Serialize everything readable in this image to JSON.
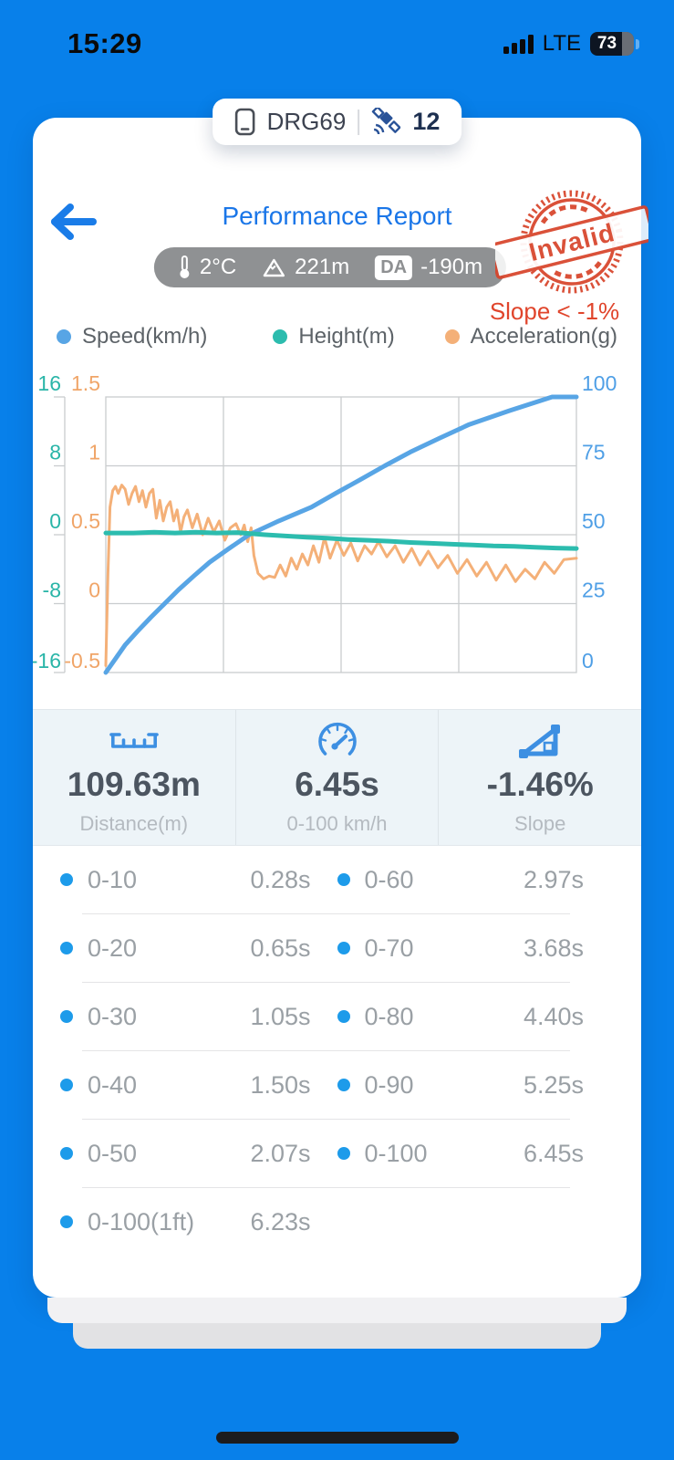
{
  "status_bar": {
    "time": "15:29",
    "network": "LTE",
    "battery_percent": "73"
  },
  "device_pill": {
    "name": "DRG69",
    "satellite_count": "12"
  },
  "header": {
    "title": "Performance Report",
    "stamp_text": "Invalid",
    "slope_caption": "Slope < -1%",
    "env": {
      "temperature": "2°C",
      "altitude": "221m",
      "da_label": "DA",
      "density_altitude": "-190m"
    }
  },
  "legend": [
    {
      "label": "Speed(km/h)",
      "color": "#58a5e5"
    },
    {
      "label": "Height(m)",
      "color": "#2cbcae"
    },
    {
      "label": "Acceleration(g)",
      "color": "#f4b078"
    }
  ],
  "chart_data": {
    "type": "line",
    "x_range": [
      0,
      6.8
    ],
    "x_axis_labels_visible": false,
    "grid": true,
    "axes": {
      "height_left": {
        "color": "#2ab5a8",
        "ticks": [
          16,
          8,
          0,
          -8,
          -16
        ],
        "range": [
          -16,
          16
        ]
      },
      "acceleration_left": {
        "color": "#f0a568",
        "ticks": [
          1.5,
          1,
          0.5,
          0,
          -0.5
        ],
        "range": [
          -0.5,
          1.5
        ]
      },
      "speed_right": {
        "color": "#4f9fe6",
        "ticks": [
          100,
          75,
          50,
          25,
          0
        ],
        "range": [
          0,
          100
        ]
      }
    },
    "series": [
      {
        "name": "Speed(km/h)",
        "axis": "speed_right",
        "color": "#58a5e5",
        "width": 5,
        "points": [
          [
            0,
            0
          ],
          [
            0.14,
            5
          ],
          [
            0.28,
            10
          ],
          [
            0.46,
            15
          ],
          [
            0.65,
            20
          ],
          [
            0.85,
            25
          ],
          [
            1.05,
            30
          ],
          [
            1.27,
            35
          ],
          [
            1.5,
            40
          ],
          [
            1.78,
            45
          ],
          [
            2.07,
            50
          ],
          [
            2.5,
            55
          ],
          [
            2.97,
            60
          ],
          [
            3.32,
            65
          ],
          [
            3.68,
            70
          ],
          [
            4.03,
            75
          ],
          [
            4.4,
            80
          ],
          [
            4.82,
            85
          ],
          [
            5.25,
            90
          ],
          [
            5.83,
            95
          ],
          [
            6.45,
            100
          ],
          [
            6.8,
            100
          ]
        ]
      },
      {
        "name": "Height(m)",
        "axis": "height_left",
        "color": "#2cbcae",
        "width": 5,
        "points": [
          [
            0,
            0.2
          ],
          [
            0.4,
            0.2
          ],
          [
            0.7,
            0.3
          ],
          [
            1.0,
            0.2
          ],
          [
            1.3,
            0.3
          ],
          [
            1.6,
            0.2
          ],
          [
            1.9,
            0.25
          ],
          [
            2.07,
            0.15
          ],
          [
            2.3,
            0.0
          ],
          [
            2.6,
            -0.15
          ],
          [
            2.9,
            -0.3
          ],
          [
            3.2,
            -0.4
          ],
          [
            3.5,
            -0.55
          ],
          [
            3.8,
            -0.65
          ],
          [
            4.1,
            -0.75
          ],
          [
            4.4,
            -0.9
          ],
          [
            4.7,
            -1.0
          ],
          [
            5.0,
            -1.1
          ],
          [
            5.3,
            -1.2
          ],
          [
            5.6,
            -1.3
          ],
          [
            5.9,
            -1.35
          ],
          [
            6.2,
            -1.45
          ],
          [
            6.5,
            -1.55
          ],
          [
            6.8,
            -1.6
          ]
        ]
      },
      {
        "name": "Acceleration(g)",
        "axis": "acceleration_left",
        "color": "#f4b078",
        "width": 3,
        "points": [
          [
            0,
            -0.45
          ],
          [
            0.03,
            0.2
          ],
          [
            0.06,
            0.7
          ],
          [
            0.1,
            0.82
          ],
          [
            0.14,
            0.85
          ],
          [
            0.18,
            0.8
          ],
          [
            0.23,
            0.86
          ],
          [
            0.28,
            0.83
          ],
          [
            0.33,
            0.72
          ],
          [
            0.38,
            0.8
          ],
          [
            0.43,
            0.85
          ],
          [
            0.48,
            0.74
          ],
          [
            0.53,
            0.82
          ],
          [
            0.58,
            0.7
          ],
          [
            0.63,
            0.8
          ],
          [
            0.68,
            0.83
          ],
          [
            0.73,
            0.62
          ],
          [
            0.78,
            0.75
          ],
          [
            0.83,
            0.6
          ],
          [
            0.88,
            0.7
          ],
          [
            0.93,
            0.74
          ],
          [
            0.98,
            0.6
          ],
          [
            1.03,
            0.68
          ],
          [
            1.08,
            0.52
          ],
          [
            1.13,
            0.63
          ],
          [
            1.18,
            0.68
          ],
          [
            1.25,
            0.55
          ],
          [
            1.32,
            0.65
          ],
          [
            1.4,
            0.5
          ],
          [
            1.48,
            0.62
          ],
          [
            1.56,
            0.52
          ],
          [
            1.64,
            0.6
          ],
          [
            1.72,
            0.46
          ],
          [
            1.8,
            0.55
          ],
          [
            1.88,
            0.58
          ],
          [
            1.95,
            0.5
          ],
          [
            2.0,
            0.57
          ],
          [
            2.05,
            0.45
          ],
          [
            2.1,
            0.55
          ],
          [
            2.14,
            0.35
          ],
          [
            2.2,
            0.22
          ],
          [
            2.28,
            0.18
          ],
          [
            2.36,
            0.2
          ],
          [
            2.44,
            0.19
          ],
          [
            2.52,
            0.28
          ],
          [
            2.6,
            0.2
          ],
          [
            2.68,
            0.33
          ],
          [
            2.76,
            0.25
          ],
          [
            2.84,
            0.36
          ],
          [
            2.92,
            0.28
          ],
          [
            3.0,
            0.42
          ],
          [
            3.08,
            0.3
          ],
          [
            3.16,
            0.48
          ],
          [
            3.24,
            0.33
          ],
          [
            3.34,
            0.46
          ],
          [
            3.44,
            0.35
          ],
          [
            3.54,
            0.44
          ],
          [
            3.64,
            0.31
          ],
          [
            3.74,
            0.42
          ],
          [
            3.84,
            0.36
          ],
          [
            3.94,
            0.45
          ],
          [
            4.06,
            0.34
          ],
          [
            4.18,
            0.42
          ],
          [
            4.3,
            0.3
          ],
          [
            4.42,
            0.4
          ],
          [
            4.54,
            0.28
          ],
          [
            4.66,
            0.38
          ],
          [
            4.8,
            0.26
          ],
          [
            4.94,
            0.35
          ],
          [
            5.08,
            0.22
          ],
          [
            5.22,
            0.32
          ],
          [
            5.36,
            0.2
          ],
          [
            5.5,
            0.3
          ],
          [
            5.64,
            0.17
          ],
          [
            5.78,
            0.28
          ],
          [
            5.92,
            0.16
          ],
          [
            6.06,
            0.25
          ],
          [
            6.2,
            0.18
          ],
          [
            6.34,
            0.3
          ],
          [
            6.48,
            0.22
          ],
          [
            6.62,
            0.32
          ],
          [
            6.8,
            0.33
          ]
        ]
      }
    ]
  },
  "stats": [
    {
      "icon": "ruler-icon",
      "value": "109.63m",
      "label": "Distance(m)"
    },
    {
      "icon": "speedometer-icon",
      "value": "6.45s",
      "label": "0-100 km/h"
    },
    {
      "icon": "slope-icon",
      "value": "-1.46%",
      "label": "Slope"
    }
  ],
  "times": {
    "rows": [
      {
        "l_label": "0-10",
        "l_value": "0.28s",
        "r_label": "0-60",
        "r_value": "2.97s"
      },
      {
        "l_label": "0-20",
        "l_value": "0.65s",
        "r_label": "0-70",
        "r_value": "3.68s"
      },
      {
        "l_label": "0-30",
        "l_value": "1.05s",
        "r_label": "0-80",
        "r_value": "4.40s"
      },
      {
        "l_label": "0-40",
        "l_value": "1.50s",
        "r_label": "0-90",
        "r_value": "5.25s"
      },
      {
        "l_label": "0-50",
        "l_value": "2.07s",
        "r_label": "0-100",
        "r_value": "6.45s"
      }
    ],
    "footer": {
      "label": "0-100(1ft)",
      "value": "6.23s"
    }
  }
}
